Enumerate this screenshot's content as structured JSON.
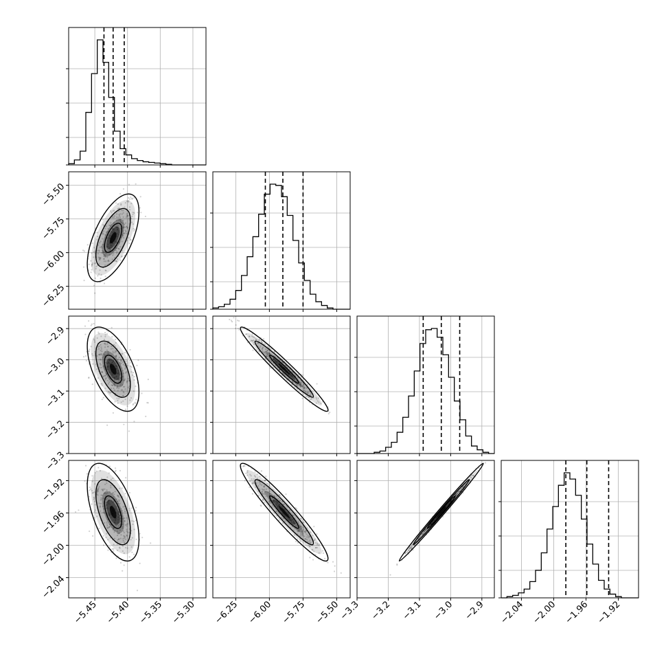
{
  "chart_data": {
    "type": "corner",
    "parameters": 4,
    "panel_style": {
      "frame": "#000000",
      "grid": "#b0b0b0",
      "hist": "#000000",
      "contour": "#000000",
      "density": "#000000"
    },
    "grid": true,
    "axes": [
      {
        "xlim": [
          -5.49,
          -5.28
        ],
        "ticks": [
          -5.45,
          -5.4,
          -5.35,
          -5.3
        ],
        "tick_labels": [
          "−5.45",
          "−5.40",
          "−5.35",
          "−5.30"
        ],
        "quantiles": [
          -5.436,
          -5.422,
          -5.405
        ],
        "mean": -5.422,
        "sd": 0.017
      },
      {
        "xlim": [
          -6.42,
          -5.4
        ],
        "ticks": [
          -6.25,
          -6.0,
          -5.75,
          -5.5
        ],
        "tick_labels": [
          "−6.25",
          "−6.00",
          "−5.75",
          "−5.50"
        ],
        "quantiles": [
          -6.03,
          -5.9,
          -5.75
        ],
        "mean": -5.89,
        "sd": 0.14
      },
      {
        "xlim": [
          -3.3,
          -2.86
        ],
        "ticks": [
          -3.3,
          -3.2,
          -3.1,
          -3.0,
          -2.9
        ],
        "tick_labels": [
          "−3.3",
          "−3.2",
          "−3.1",
          "−3.0",
          "−2.9"
        ],
        "quantiles": [
          -3.088,
          -3.03,
          -2.971
        ],
        "mean": -3.03,
        "sd": 0.058
      },
      {
        "xlim": [
          -2.065,
          -1.895
        ],
        "ticks": [
          -2.04,
          -2.0,
          -1.96,
          -1.92
        ],
        "tick_labels": [
          "−2.04",
          "−2.00",
          "−1.96",
          "−1.92"
        ],
        "quantiles": [
          -1.985,
          -1.959,
          -1.932
        ],
        "mean": -1.959,
        "sd": 0.026
      }
    ],
    "correlations": [
      {
        "x": 0,
        "y": 1,
        "r": 0.6
      },
      {
        "x": 0,
        "y": 2,
        "r": -0.55
      },
      {
        "x": 1,
        "y": 2,
        "r": -0.97
      },
      {
        "x": 0,
        "y": 3,
        "r": -0.55
      },
      {
        "x": 1,
        "y": 3,
        "r": -0.95
      },
      {
        "x": 2,
        "y": 3,
        "r": 0.995
      }
    ],
    "histograms": [
      {
        "param": 0,
        "bins": 24,
        "counts": [
          0.01,
          0.04,
          0.11,
          0.42,
          0.73,
          1.0,
          0.82,
          0.54,
          0.27,
          0.13,
          0.08,
          0.05,
          0.035,
          0.025,
          0.02,
          0.015,
          0.01,
          0.005,
          0.0,
          0.0,
          0.0,
          0.0,
          0.0,
          0.0
        ]
      },
      {
        "param": 1,
        "bins": 24,
        "counts": [
          0.01,
          0.02,
          0.04,
          0.08,
          0.15,
          0.27,
          0.42,
          0.58,
          0.76,
          0.92,
          1.0,
          0.99,
          0.9,
          0.75,
          0.55,
          0.37,
          0.23,
          0.12,
          0.06,
          0.03,
          0.01,
          0.0,
          0.0,
          0.0
        ]
      },
      {
        "param": 2,
        "bins": 24,
        "counts": [
          0.0,
          0.0,
          0.0,
          0.01,
          0.02,
          0.05,
          0.09,
          0.17,
          0.29,
          0.46,
          0.66,
          0.88,
          0.99,
          1.0,
          0.93,
          0.79,
          0.61,
          0.42,
          0.27,
          0.14,
          0.06,
          0.03,
          0.01,
          0.0
        ]
      },
      {
        "param": 3,
        "bins": 24,
        "counts": [
          0.0,
          0.01,
          0.02,
          0.04,
          0.07,
          0.13,
          0.22,
          0.36,
          0.55,
          0.73,
          0.9,
          1.0,
          0.95,
          0.82,
          0.63,
          0.43,
          0.27,
          0.14,
          0.07,
          0.03,
          0.01,
          0.0,
          0.0,
          0.0
        ]
      }
    ],
    "contour_levels_sigma": [
      0.5,
      1.0,
      1.5
    ],
    "scatter_points_per_panel": 380
  }
}
